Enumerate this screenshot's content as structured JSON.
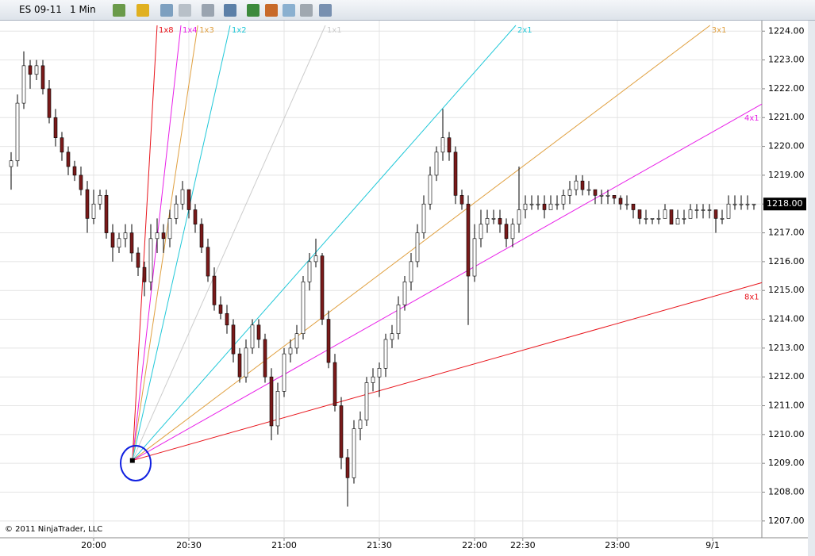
{
  "toolbar": {
    "instrument": "ES 09-11",
    "interval": "1 Min"
  },
  "chart_data": {
    "type": "candlestick",
    "copyright": "© 2011 NinjaTrader, LLC",
    "up_color": "#ffffff",
    "down_color": "#7a1a1a",
    "wick_color": "#000000",
    "grid": true,
    "xlim": [
      -1.75,
      118.25
    ],
    "ylim": [
      1206.5,
      1224.2
    ],
    "xticks": [
      {
        "value": 13,
        "label": "20:00"
      },
      {
        "value": 28,
        "label": "20:30"
      },
      {
        "value": 43,
        "label": "21:00"
      },
      {
        "value": 58,
        "label": "21:30"
      },
      {
        "value": 73,
        "label": "22:00"
      },
      {
        "value": 80.6,
        "label": "22:30"
      },
      {
        "value": 95.5,
        "label": "23:00"
      },
      {
        "value": 110.5,
        "label": "9/1"
      }
    ],
    "yticks": [
      {
        "value": 1207,
        "label": "1207.00"
      },
      {
        "value": 1208,
        "label": "1208.00"
      },
      {
        "value": 1209,
        "label": "1209.00"
      },
      {
        "value": 1210,
        "label": "1210.00"
      },
      {
        "value": 1211,
        "label": "1211.00"
      },
      {
        "value": 1212,
        "label": "1212.00"
      },
      {
        "value": 1213,
        "label": "1213.00"
      },
      {
        "value": 1214,
        "label": "1214.00"
      },
      {
        "value": 1215,
        "label": "1215.00"
      },
      {
        "value": 1216,
        "label": "1216.00"
      },
      {
        "value": 1217,
        "label": "1217.00"
      },
      {
        "value": 1218,
        "label": "1218.00"
      },
      {
        "value": 1219,
        "label": "1219.00"
      },
      {
        "value": 1220,
        "label": "1220.00"
      },
      {
        "value": 1221,
        "label": "1221.00"
      },
      {
        "value": 1222,
        "label": "1222.00"
      },
      {
        "value": 1223,
        "label": "1223.00"
      },
      {
        "value": 1224,
        "label": "1224.00"
      }
    ],
    "price_marker": {
      "value": 1218,
      "label": "1218.00"
    },
    "candles": [
      [
        1219.3,
        1219.8,
        1218.5,
        1219.5
      ],
      [
        1219.5,
        1221.8,
        1219.3,
        1221.5
      ],
      [
        1221.5,
        1223.3,
        1221.3,
        1222.8
      ],
      [
        1222.8,
        1223,
        1222,
        1222.5
      ],
      [
        1222.5,
        1223,
        1222.3,
        1222.8
      ],
      [
        1222.8,
        1223,
        1221.8,
        1222
      ],
      [
        1222,
        1222.3,
        1220.8,
        1221
      ],
      [
        1221,
        1221.3,
        1220,
        1220.3
      ],
      [
        1220.3,
        1220.5,
        1219.5,
        1219.8
      ],
      [
        1219.8,
        1220,
        1219,
        1219.3
      ],
      [
        1219.3,
        1219.5,
        1218.8,
        1219
      ],
      [
        1219,
        1219.3,
        1218.3,
        1218.5
      ],
      [
        1218.5,
        1218.8,
        1217,
        1217.5
      ],
      [
        1217.5,
        1218.5,
        1217.3,
        1218
      ],
      [
        1218,
        1218.5,
        1217.8,
        1218.3
      ],
      [
        1218.3,
        1218.5,
        1216.8,
        1217
      ],
      [
        1217,
        1217.3,
        1216,
        1216.5
      ],
      [
        1216.5,
        1217,
        1216.3,
        1216.8
      ],
      [
        1216.8,
        1217.3,
        1216.5,
        1217
      ],
      [
        1217,
        1217.3,
        1216,
        1216.3
      ],
      [
        1216.3,
        1216.5,
        1215.5,
        1215.8
      ],
      [
        1215.8,
        1216,
        1214.8,
        1215.3
      ],
      [
        1215.3,
        1217.3,
        1215,
        1216.8
      ],
      [
        1216.8,
        1217.5,
        1216.3,
        1217
      ],
      [
        1217,
        1217.3,
        1216.3,
        1216.8
      ],
      [
        1216.8,
        1217.8,
        1216.5,
        1217.5
      ],
      [
        1217.5,
        1218.3,
        1217.3,
        1218
      ],
      [
        1218,
        1218.8,
        1217.8,
        1218.5
      ],
      [
        1218.5,
        1218.5,
        1217.5,
        1217.8
      ],
      [
        1217.8,
        1218,
        1217,
        1217.3
      ],
      [
        1217.3,
        1217.5,
        1216.3,
        1216.5
      ],
      [
        1216.5,
        1216.8,
        1215.3,
        1215.5
      ],
      [
        1215.5,
        1215.8,
        1214.3,
        1214.5
      ],
      [
        1214.5,
        1214.8,
        1214,
        1214.2
      ],
      [
        1214.2,
        1214.5,
        1213.5,
        1213.8
      ],
      [
        1213.8,
        1214,
        1212.5,
        1212.8
      ],
      [
        1212.8,
        1213,
        1211.8,
        1212
      ],
      [
        1212,
        1213.3,
        1211.8,
        1213
      ],
      [
        1213,
        1214,
        1212.8,
        1213.8
      ],
      [
        1213.8,
        1214,
        1213,
        1213.3
      ],
      [
        1213.3,
        1213.5,
        1211.8,
        1212
      ],
      [
        1212,
        1212.3,
        1209.8,
        1210.3
      ],
      [
        1210.3,
        1211.8,
        1210,
        1211.5
      ],
      [
        1211.5,
        1213,
        1211.3,
        1212.8
      ],
      [
        1212.8,
        1213.3,
        1212.5,
        1213
      ],
      [
        1213,
        1213.8,
        1212.8,
        1213.5
      ],
      [
        1213.5,
        1215.5,
        1213.3,
        1215.3
      ],
      [
        1215.3,
        1216.3,
        1215,
        1216
      ],
      [
        1216,
        1216.8,
        1215.8,
        1216.2
      ],
      [
        1216.2,
        1216.3,
        1213.8,
        1214
      ],
      [
        1214,
        1214.3,
        1212.3,
        1212.5
      ],
      [
        1212.5,
        1212.8,
        1210.8,
        1211
      ],
      [
        1211,
        1211.3,
        1208.8,
        1209.2
      ],
      [
        1209.2,
        1209.5,
        1207.5,
        1208.5
      ],
      [
        1208.5,
        1210.5,
        1208.3,
        1210.2
      ],
      [
        1210.2,
        1210.8,
        1209.8,
        1210.5
      ],
      [
        1210.5,
        1212,
        1210.3,
        1211.8
      ],
      [
        1211.8,
        1212.3,
        1211.5,
        1212
      ],
      [
        1212,
        1212.5,
        1211.3,
        1212.3
      ],
      [
        1212.3,
        1213.5,
        1212,
        1213.3
      ],
      [
        1213.3,
        1213.8,
        1213,
        1213.5
      ],
      [
        1213.5,
        1214.8,
        1213.3,
        1214.5
      ],
      [
        1214.5,
        1215.5,
        1214.3,
        1215.3
      ],
      [
        1215.3,
        1216.3,
        1215,
        1216
      ],
      [
        1216,
        1217.3,
        1215.8,
        1217
      ],
      [
        1217,
        1218.3,
        1216.8,
        1218
      ],
      [
        1218,
        1219.3,
        1217.8,
        1219
      ],
      [
        1219,
        1220,
        1218.8,
        1219.8
      ],
      [
        1219.8,
        1221.3,
        1219.5,
        1220.3
      ],
      [
        1220.3,
        1220.5,
        1219.5,
        1219.8
      ],
      [
        1219.8,
        1220,
        1218,
        1218.3
      ],
      [
        1218.3,
        1218.5,
        1217.8,
        1218
      ],
      [
        1218,
        1218.3,
        1213.8,
        1215.5
      ],
      [
        1215.5,
        1217.3,
        1215.3,
        1216.8
      ],
      [
        1216.8,
        1217.8,
        1216.5,
        1217.3
      ],
      [
        1217.3,
        1217.8,
        1217,
        1217.5
      ],
      [
        1217.5,
        1217.8,
        1217.3,
        1217.5
      ],
      [
        1217.5,
        1217.8,
        1217,
        1217.3
      ],
      [
        1217.3,
        1217.5,
        1216.5,
        1216.8
      ],
      [
        1216.8,
        1217.5,
        1216.5,
        1217.3
      ],
      [
        1217.3,
        1219.3,
        1217,
        1217.8
      ],
      [
        1217.8,
        1218.3,
        1217.5,
        1218
      ],
      [
        1218,
        1218.3,
        1217.8,
        1218
      ],
      [
        1218,
        1218.3,
        1217.8,
        1218
      ],
      [
        1218,
        1218.3,
        1217.5,
        1217.8
      ],
      [
        1217.8,
        1218.3,
        1217.8,
        1218
      ],
      [
        1218,
        1218.3,
        1217.8,
        1218
      ],
      [
        1218,
        1218.5,
        1217.8,
        1218.3
      ],
      [
        1218.3,
        1218.8,
        1218,
        1218.5
      ],
      [
        1218.5,
        1219,
        1218.3,
        1218.8
      ],
      [
        1218.8,
        1219,
        1218.3,
        1218.5
      ],
      [
        1218.5,
        1218.8,
        1218.3,
        1218.5
      ],
      [
        1218.5,
        1218.5,
        1218,
        1218.3
      ],
      [
        1218.3,
        1218.5,
        1218,
        1218.3
      ],
      [
        1218.3,
        1218.5,
        1218,
        1218.3
      ],
      [
        1218.3,
        1218.3,
        1218,
        1218.2
      ],
      [
        1218.2,
        1218.3,
        1217.8,
        1218
      ],
      [
        1218,
        1218.3,
        1217.8,
        1218
      ],
      [
        1218,
        1218,
        1217.5,
        1217.8
      ],
      [
        1217.8,
        1217.8,
        1217.3,
        1217.5
      ],
      [
        1217.5,
        1217.8,
        1217.3,
        1217.5
      ],
      [
        1217.5,
        1217.5,
        1217.3,
        1217.5
      ],
      [
        1217.5,
        1217.8,
        1217.3,
        1217.5
      ],
      [
        1217.5,
        1218,
        1217.5,
        1217.8
      ],
      [
        1217.8,
        1217.8,
        1217.3,
        1217.3
      ],
      [
        1217.3,
        1217.8,
        1217.3,
        1217.5
      ],
      [
        1217.5,
        1217.8,
        1217.3,
        1217.5
      ],
      [
        1217.5,
        1218,
        1217.5,
        1217.8
      ],
      [
        1217.8,
        1218,
        1217.5,
        1217.8
      ],
      [
        1217.8,
        1218,
        1217.5,
        1217.8
      ],
      [
        1217.8,
        1218,
        1217.5,
        1217.8
      ],
      [
        1217.8,
        1217.8,
        1217,
        1217.5
      ],
      [
        1217.5,
        1217.8,
        1217.3,
        1217.5
      ],
      [
        1217.5,
        1218.3,
        1217.5,
        1218
      ],
      [
        1218,
        1218.3,
        1217.8,
        1218
      ],
      [
        1218,
        1218.3,
        1217.8,
        1218
      ],
      [
        1218,
        1218.3,
        1217.8,
        1218
      ],
      [
        1218,
        1218,
        1217.8,
        1218
      ]
    ],
    "gann_fan": {
      "origin": {
        "x": 19.1,
        "y": 1209.1
      },
      "lines": [
        {
          "label": "1x8",
          "color": "#e8141b",
          "end": {
            "x": 23.0,
            "y": 1224.2
          }
        },
        {
          "label": "1x4",
          "color": "#e81ee8",
          "end": {
            "x": 26.75,
            "y": 1224.2
          }
        },
        {
          "label": "1x3",
          "color": "#e0a040",
          "end": {
            "x": 29.4,
            "y": 1224.2
          }
        },
        {
          "label": "1x2",
          "color": "#20c8d8",
          "end": {
            "x": 34.5,
            "y": 1224.2
          }
        },
        {
          "label": "1x1",
          "color": "#cccccc",
          "end": {
            "x": 49.5,
            "y": 1224.2
          }
        },
        {
          "label": "2x1",
          "color": "#20c8d8",
          "end": {
            "x": 79.5,
            "y": 1224.2
          }
        },
        {
          "label": "3x1",
          "color": "#e0a040",
          "end": {
            "x": 110.1,
            "y": 1224.2
          }
        },
        {
          "label": "4x1",
          "color": "#e81ee8",
          "end": {
            "x": 118.25,
            "y": 1221.47
          }
        },
        {
          "label": "8x1",
          "color": "#e8141b",
          "end": {
            "x": 118.25,
            "y": 1215.27
          }
        }
      ]
    }
  }
}
